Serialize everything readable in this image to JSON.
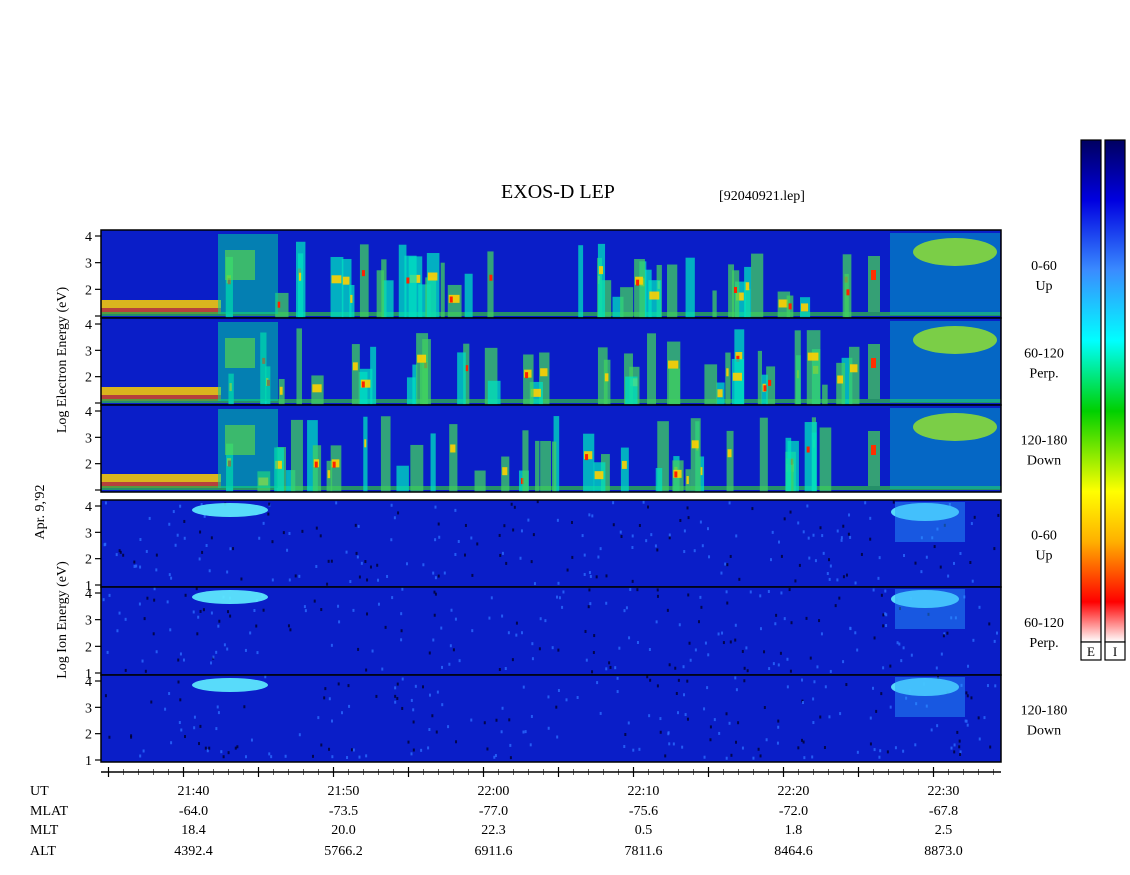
{
  "chart_data": {
    "type": "heatmap",
    "title": "EXOS-D LEP",
    "file": "[92040921.lep]",
    "date_label": "Apr. 9,'92",
    "x_axis": {
      "unit": "UT",
      "tick_labels": [
        "21:40",
        "21:50",
        "22:00",
        "22:10",
        "22:20",
        "22:30"
      ],
      "range_minutes": [
        -5.5,
        54.5
      ],
      "major_tick_minutes": [
        -5,
        0,
        5,
        10,
        15,
        20,
        25,
        30,
        35,
        40,
        45,
        50
      ]
    },
    "y_ticks": [
      "1",
      "2",
      "3",
      "4"
    ],
    "y_range": [
      1,
      4
    ],
    "group_labels": {
      "electron": [
        "Log",
        "Electron",
        "Energy",
        "(eV)"
      ],
      "ion": [
        "Log",
        "Ion",
        "Energy",
        "(eV)"
      ]
    },
    "panels": [
      {
        "species": "Electron",
        "pitch": "0-60",
        "dir": "Up"
      },
      {
        "species": "Electron",
        "pitch": "60-120",
        "dir": "Perp."
      },
      {
        "species": "Electron",
        "pitch": "120-180",
        "dir": "Down"
      },
      {
        "species": "Ion",
        "pitch": "0-60",
        "dir": "Up"
      },
      {
        "species": "Ion",
        "pitch": "60-120",
        "dir": "Perp."
      },
      {
        "species": "Ion",
        "pitch": "120-180",
        "dir": "Down"
      }
    ],
    "ephemeris": {
      "labels": [
        "UT",
        "MLAT",
        "MLT",
        "ALT"
      ],
      "columns": [
        {
          "ut": "21:40",
          "mlat": "-64.0",
          "mlt": "18.4",
          "alt": "4392.4"
        },
        {
          "ut": "21:50",
          "mlat": "-73.5",
          "mlt": "20.0",
          "alt": "5766.2"
        },
        {
          "ut": "22:00",
          "mlat": "-77.0",
          "mlt": "22.3",
          "alt": "6911.6"
        },
        {
          "ut": "22:10",
          "mlat": "-75.6",
          "mlt": "0.5",
          "alt": "7811.6"
        },
        {
          "ut": "22:20",
          "mlat": "-72.0",
          "mlt": "1.8",
          "alt": "8464.6"
        },
        {
          "ut": "22:30",
          "mlat": "-67.8",
          "mlt": "2.5",
          "alt": "8873.0"
        }
      ]
    },
    "colorbars": [
      {
        "label": "E"
      },
      {
        "label": "I"
      }
    ],
    "colors": {
      "background": "#0a1ec8",
      "scale": [
        "#ffffff",
        "#ff0000",
        "#ffb000",
        "#ffff00",
        "#00d000",
        "#00ffff",
        "#3a8cff",
        "#0000e0",
        "#000060"
      ]
    }
  }
}
